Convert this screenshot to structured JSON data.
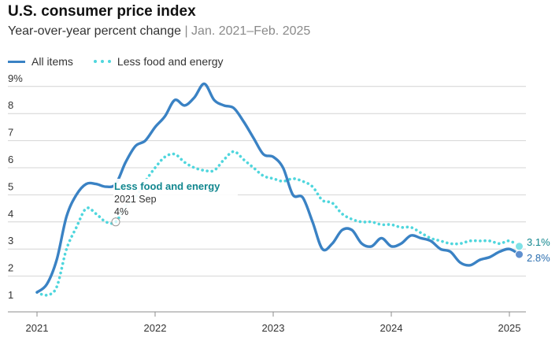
{
  "chart_data": {
    "type": "line",
    "title": "U.S. consumer price index",
    "subtitle_main": "Year-over-year percent change",
    "subtitle_range": "Jan. 2021–Feb. 2025",
    "xlabel": "",
    "ylabel": "",
    "ylim": [
      1,
      9
    ],
    "yticks": [
      "1",
      "2",
      "3",
      "4",
      "5",
      "6",
      "7",
      "8",
      "9%"
    ],
    "xticks": [
      "2021",
      "2022",
      "2023",
      "2024",
      "2025"
    ],
    "x_start": "2021-01",
    "colors": {
      "all": "#3a82c4",
      "core": "#4fd6dd",
      "annotation": "#12878f",
      "grid": "#d4d4d4"
    },
    "series": [
      {
        "name": "All items",
        "values": [
          1.4,
          1.7,
          2.6,
          4.2,
          5.0,
          5.4,
          5.4,
          5.3,
          5.4,
          6.2,
          6.8,
          7.0,
          7.5,
          7.9,
          8.5,
          8.3,
          8.6,
          9.1,
          8.5,
          8.3,
          8.2,
          7.7,
          7.1,
          6.5,
          6.4,
          6.0,
          5.0,
          4.9,
          4.0,
          3.0,
          3.2,
          3.7,
          3.7,
          3.2,
          3.1,
          3.4,
          3.1,
          3.2,
          3.5,
          3.4,
          3.3,
          3.0,
          2.9,
          2.5,
          2.4,
          2.6,
          2.7,
          2.9,
          3.0,
          2.8
        ]
      },
      {
        "name": "Less food and energy",
        "values": [
          1.4,
          1.3,
          1.6,
          3.0,
          3.8,
          4.5,
          4.3,
          4.0,
          4.0,
          4.6,
          4.9,
          5.5,
          6.0,
          6.4,
          6.5,
          6.2,
          6.0,
          5.9,
          5.9,
          6.3,
          6.6,
          6.3,
          6.0,
          5.7,
          5.6,
          5.5,
          5.6,
          5.5,
          5.3,
          4.8,
          4.7,
          4.3,
          4.1,
          4.0,
          4.0,
          3.9,
          3.9,
          3.8,
          3.8,
          3.6,
          3.4,
          3.3,
          3.2,
          3.2,
          3.3,
          3.3,
          3.3,
          3.2,
          3.3,
          3.1
        ]
      }
    ],
    "annotation": {
      "series": "Less food and energy",
      "label": "Less food and energy",
      "date": "2021 Sep",
      "value_label": "4%",
      "index": 8
    },
    "end_labels": [
      "3.1%",
      "2.8%"
    ]
  }
}
